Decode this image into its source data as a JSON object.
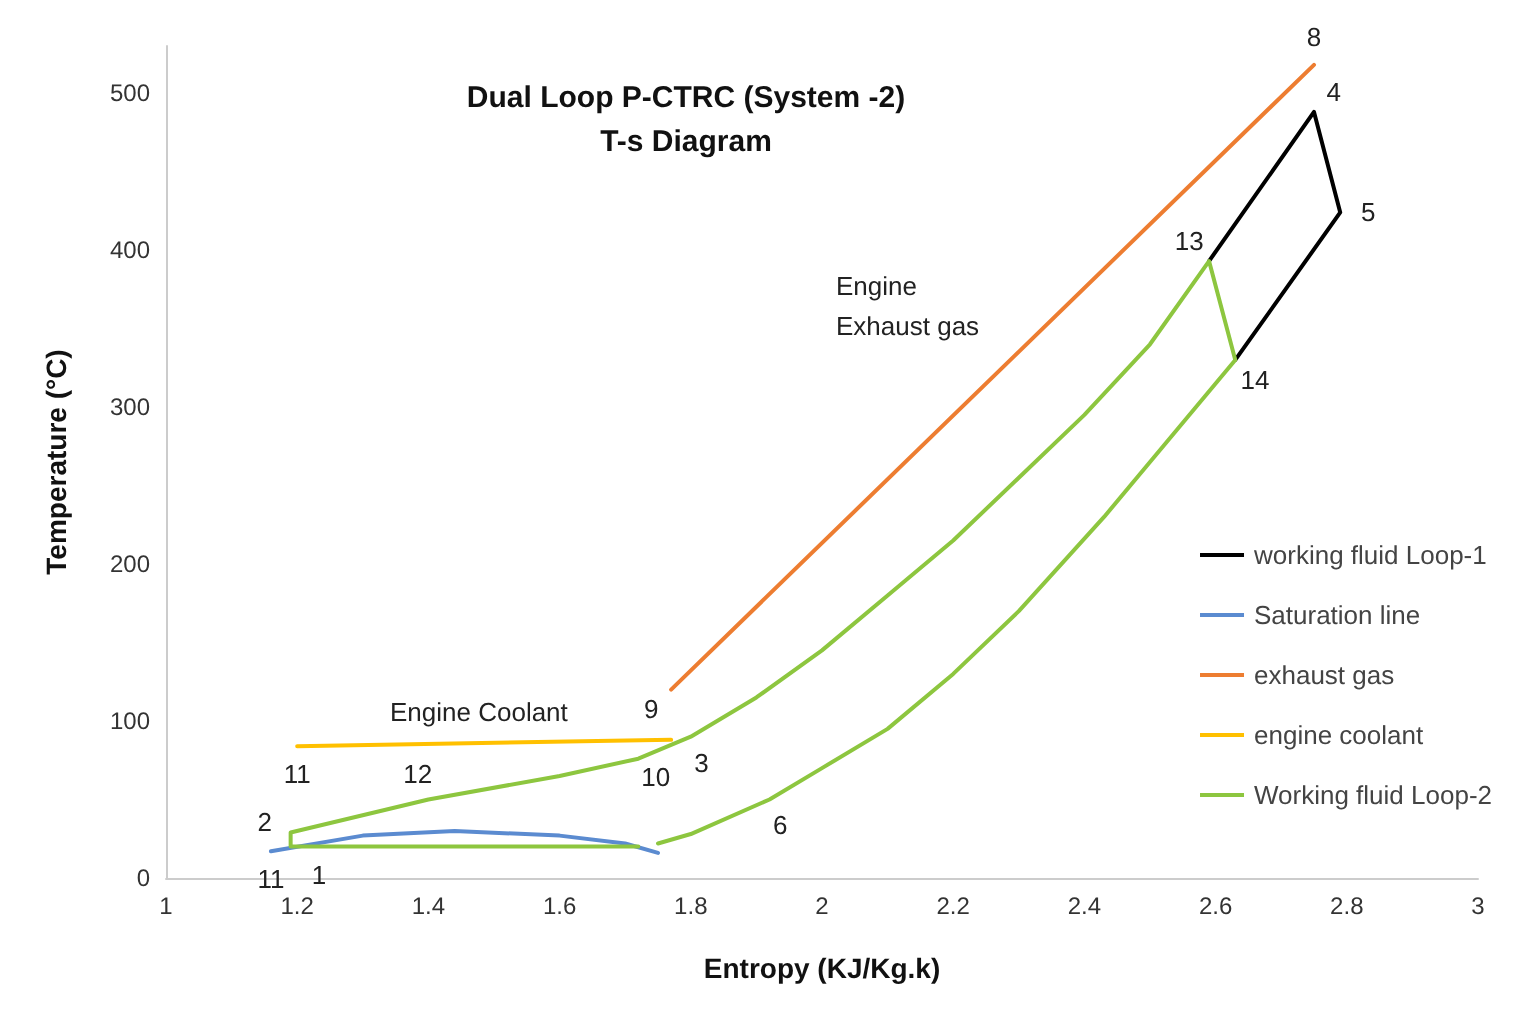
{
  "chart_data": {
    "type": "line",
    "title": "Dual Loop P-CTRC (System -2)\nT-s Diagram",
    "xlabel": "Entropy (KJ/Kg.k)",
    "ylabel": "Temperature (°C)",
    "xlim": [
      1,
      3
    ],
    "xticks": [
      1,
      1.2,
      1.4,
      1.6,
      1.8,
      2,
      2.2,
      2.4,
      2.6,
      2.8,
      3
    ],
    "ylim": [
      0,
      530
    ],
    "yticks": [
      0,
      100,
      200,
      300,
      400,
      500
    ],
    "grid": false,
    "legend": "right",
    "marker": "none",
    "line_style": "solid",
    "series": [
      {
        "name": "working fluid Loop-1",
        "color": "#000000",
        "x": [
          2.59,
          2.75,
          2.79,
          2.63
        ],
        "values": [
          393,
          488,
          424,
          330
        ]
      },
      {
        "name": "Saturation line",
        "color": "#5b8bd0",
        "x": [
          1.16,
          1.3,
          1.44,
          1.6,
          1.7,
          1.75
        ],
        "values": [
          17,
          27,
          30,
          27,
          22,
          16
        ]
      },
      {
        "name": "exhaust gas",
        "color": "#ed7d31",
        "x": [
          1.77,
          2.75
        ],
        "values": [
          120,
          518
        ]
      },
      {
        "name": "engine coolant",
        "color": "#ffc000",
        "x": [
          1.2,
          1.77
        ],
        "values": [
          84,
          88
        ]
      },
      {
        "name": "Working fluid Loop-2",
        "color": "#8dc63f",
        "x": [
          1.72,
          1.19,
          1.19,
          1.4,
          1.6,
          1.72,
          1.8,
          1.9,
          2.0,
          2.1,
          2.2,
          2.3,
          2.4,
          2.5,
          2.59,
          2.63,
          2.5,
          2.43,
          2.3,
          2.2,
          2.1,
          2.0,
          1.92,
          1.8,
          1.75
        ],
        "values": [
          20,
          20,
          29,
          50,
          65,
          76,
          90,
          115,
          145,
          180,
          215,
          255,
          295,
          340,
          393,
          330,
          265,
          230,
          170,
          130,
          95,
          70,
          50,
          28,
          22
        ]
      }
    ],
    "annotations": [
      {
        "text": "1",
        "x": 1.19,
        "y": 20
      },
      {
        "text": "2",
        "x": 1.19,
        "y": 29
      },
      {
        "text": "3",
        "x": 1.8,
        "y": 90
      },
      {
        "text": "4",
        "x": 2.75,
        "y": 488
      },
      {
        "text": "5",
        "x": 2.79,
        "y": 424
      },
      {
        "text": "6",
        "x": 1.92,
        "y": 50
      },
      {
        "text": "8",
        "x": 2.75,
        "y": 518
      },
      {
        "text": "9",
        "x": 1.77,
        "y": 120
      },
      {
        "text": "10",
        "x": 1.77,
        "y": 88
      },
      {
        "text": "11",
        "x": 1.2,
        "y": 84
      },
      {
        "text": "11",
        "x": 1.16,
        "y": 17
      },
      {
        "text": "12",
        "x": 1.4,
        "y": 50
      },
      {
        "text": "13",
        "x": 2.59,
        "y": 393
      },
      {
        "text": "14",
        "x": 2.63,
        "y": 330
      },
      "Engine\nExhaust gas",
      "Engine Coolant"
    ]
  }
}
